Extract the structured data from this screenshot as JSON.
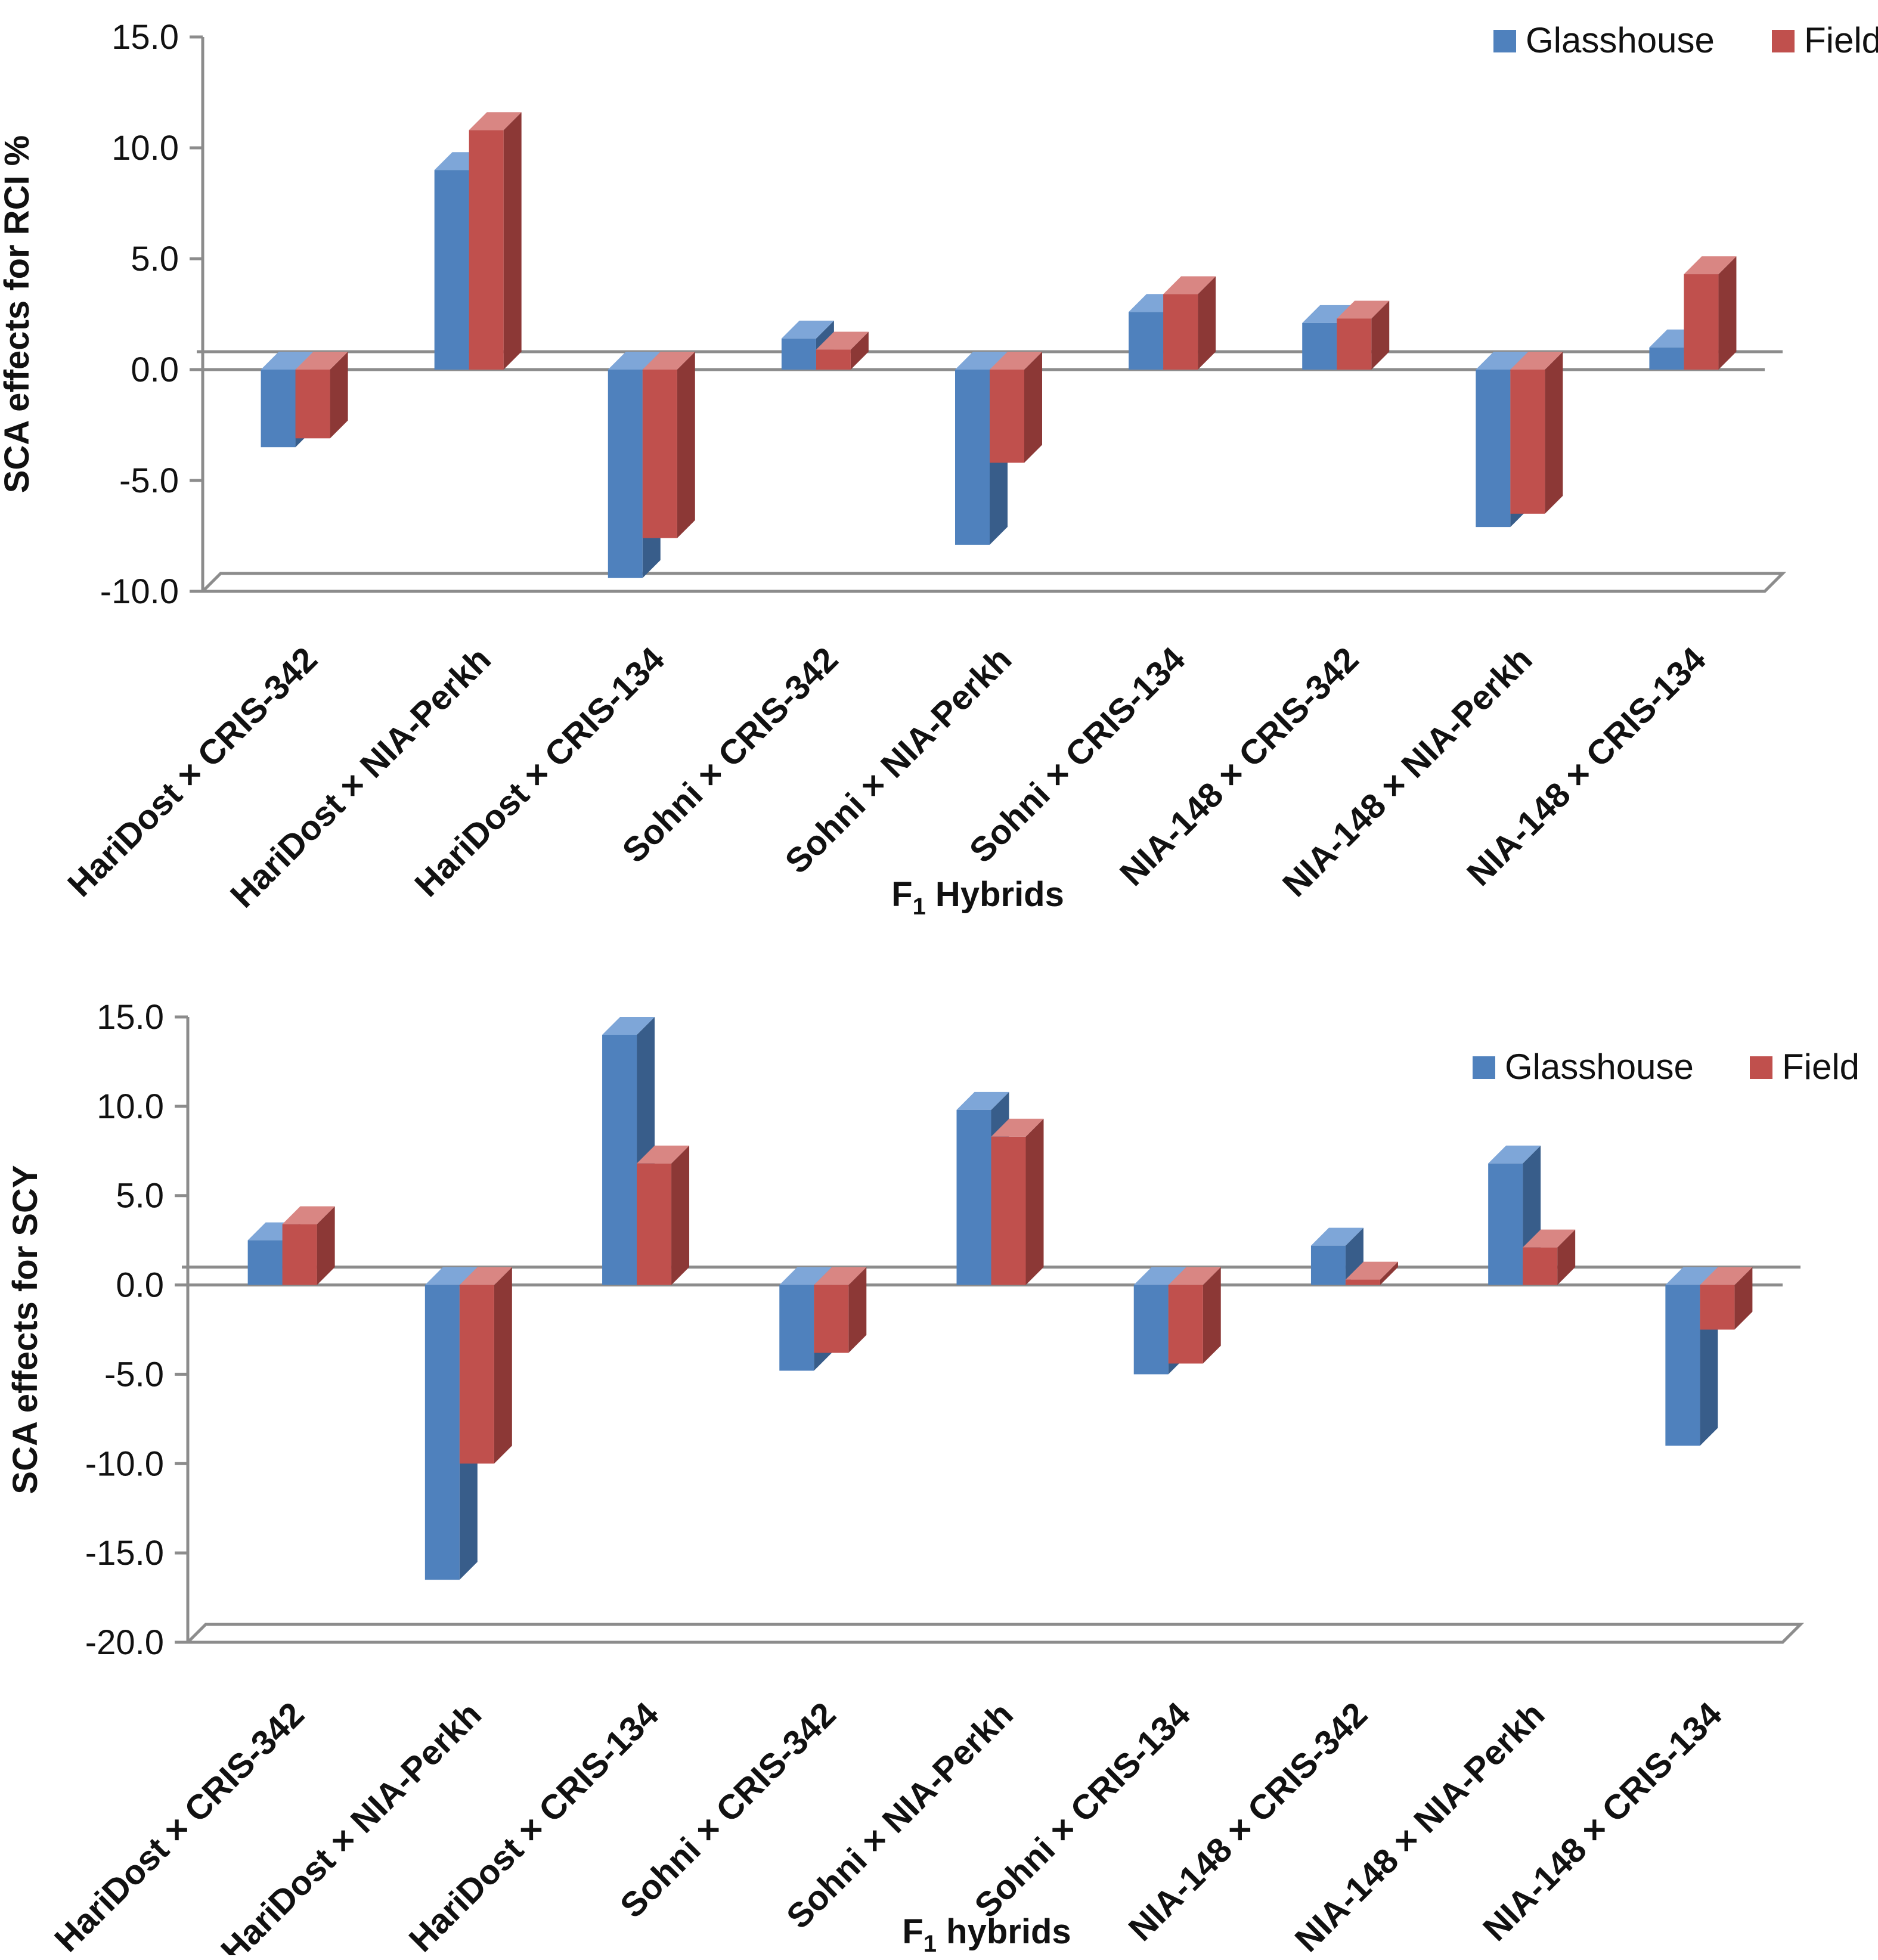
{
  "colors": {
    "glasshouse": "#4f81bd",
    "glasshouse_side": "#385d8a",
    "glasshouse_top": "#7ea6d8",
    "field": "#c0504d",
    "field_side": "#8c3836",
    "field_top": "#d98683",
    "axis": "#8c8c8c"
  },
  "chart_data": [
    {
      "type": "bar",
      "title": "",
      "xlabel_main": "F",
      "xlabel_sub": "1",
      "xlabel_rest": " Hybrids",
      "ylabel": "SCA effects for RCI %",
      "ylim": [
        -10,
        15
      ],
      "yticks": [
        15,
        10,
        5,
        0,
        -5,
        -10
      ],
      "ytick_labels": [
        "15.0",
        "10.0",
        "5.0",
        "0.0",
        "-5.0",
        "-10.0"
      ],
      "legend_position": "top-right",
      "categories": [
        "HariDost × CRIS-342",
        "HariDost × NIA-Perkh",
        "HariDost × CRIS-134",
        "Sohni × CRIS-342",
        "Sohni × NIA-Perkh",
        "Sohni × CRIS-134",
        "NIA-148 × CRIS-342",
        "NIA-148 × NIA-Perkh",
        "NIA-148 × CRIS-134"
      ],
      "series": [
        {
          "name": "Glasshouse",
          "values": [
            -3.5,
            9.0,
            -9.4,
            1.4,
            -7.9,
            2.6,
            2.1,
            -7.1,
            1.0
          ]
        },
        {
          "name": "Field",
          "values": [
            -3.1,
            10.8,
            -7.6,
            0.9,
            -4.2,
            3.4,
            2.3,
            -6.5,
            4.3
          ]
        }
      ]
    },
    {
      "type": "bar",
      "title": "",
      "xlabel_main": "F",
      "xlabel_sub": "1",
      "xlabel_rest": " hybrids",
      "ylabel": "SCA effects for SCY",
      "ylim": [
        -20,
        15
      ],
      "yticks": [
        15,
        10,
        5,
        0,
        -5,
        -10,
        -15,
        -20
      ],
      "ytick_labels": [
        "15.0",
        "10.0",
        "5.0",
        "0.0",
        "-5.0",
        "-10.0",
        "-15.0",
        "-20.0"
      ],
      "legend_position": "top-right",
      "categories": [
        "HariDost × CRIS-342",
        "HariDost × NIA-Perkh",
        "HariDost × CRIS-134",
        "Sohni × CRIS-342",
        "Sohni × NIA-Perkh",
        "Sohni × CRIS-134",
        "NIA-148 × CRIS-342",
        "NIA-148 × NIA-Perkh",
        "NIA-148 × CRIS-134"
      ],
      "series": [
        {
          "name": "Glasshouse",
          "values": [
            2.5,
            -16.5,
            14.0,
            -4.8,
            9.8,
            -5.0,
            2.2,
            6.8,
            -9.0
          ]
        },
        {
          "name": "Field",
          "values": [
            3.4,
            -10.0,
            6.8,
            -3.8,
            8.3,
            -4.4,
            0.3,
            2.1,
            -2.5
          ]
        }
      ]
    }
  ]
}
